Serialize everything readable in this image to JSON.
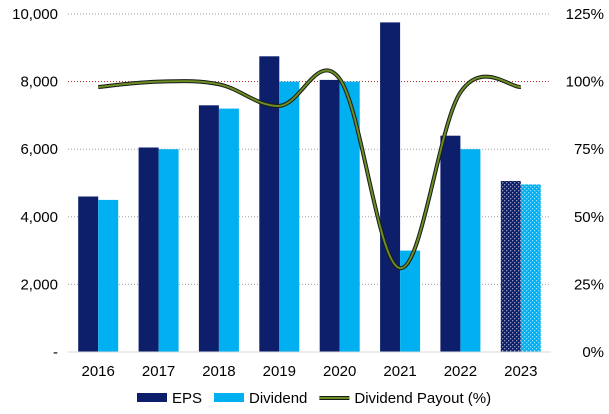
{
  "chart_data": {
    "type": "bar",
    "categories": [
      "2016",
      "2017",
      "2018",
      "2019",
      "2020",
      "2021",
      "2022",
      "2023"
    ],
    "series": [
      {
        "name": "EPS",
        "kind": "bar",
        "axis": "left",
        "color": "#0d1f6b",
        "values": [
          4600,
          6050,
          7300,
          8750,
          8050,
          9750,
          6400,
          5060
        ]
      },
      {
        "name": "Dividend",
        "kind": "bar",
        "axis": "left",
        "color": "#00b0f0",
        "values": [
          4500,
          6000,
          7200,
          8000,
          8000,
          3000,
          6000,
          4960
        ]
      },
      {
        "name": "Dividend Payout (%)",
        "kind": "line",
        "axis": "right",
        "color": "#6b8e23",
        "values": [
          98,
          100,
          99,
          91,
          101,
          31,
          96,
          98
        ]
      }
    ],
    "hatched_categories": [
      "2023"
    ],
    "y_left": {
      "min": 0,
      "max": 10000,
      "ticks": [
        "-",
        "2,000",
        "4,000",
        "6,000",
        "8,000",
        "10,000"
      ]
    },
    "y_right": {
      "min": 0,
      "max": 125,
      "ticks": [
        "0%",
        "25%",
        "50%",
        "75%",
        "100%",
        "125%"
      ]
    },
    "title": "",
    "xlabel": "",
    "ylabel": "",
    "legend": {
      "position": "bottom"
    },
    "gridlines": {
      "left_at": [
        8000
      ],
      "right_at": [
        25,
        50,
        75,
        100,
        125
      ]
    }
  }
}
